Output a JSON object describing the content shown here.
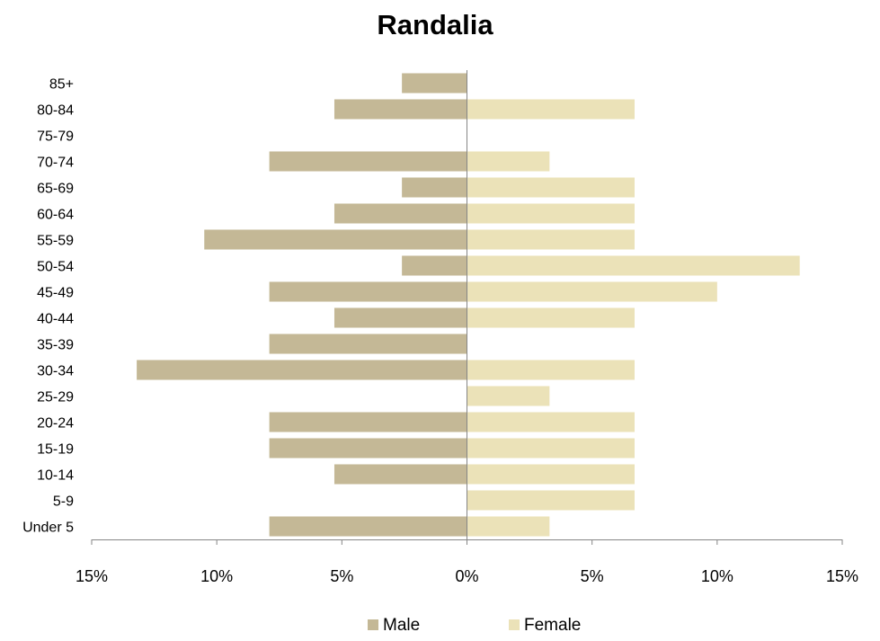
{
  "chart_data": {
    "type": "bar",
    "orientation": "horizontal",
    "title": "Randalia",
    "categories": [
      "Under 5",
      "5-9",
      "10-14",
      "15-19",
      "20-24",
      "25-29",
      "30-34",
      "35-39",
      "40-44",
      "45-49",
      "50-54",
      "55-59",
      "60-64",
      "65-69",
      "70-74",
      "75-79",
      "80-84",
      "85+"
    ],
    "series": [
      {
        "name": "Male",
        "color": "#c4b896",
        "values": [
          7.9,
          0,
          5.3,
          7.9,
          7.9,
          0,
          13.2,
          7.9,
          5.3,
          7.9,
          2.6,
          10.5,
          5.3,
          2.6,
          7.9,
          0,
          5.3,
          2.6
        ]
      },
      {
        "name": "Female",
        "color": "#ebe2b8",
        "values": [
          3.3,
          6.7,
          6.7,
          6.7,
          6.7,
          3.3,
          6.7,
          0,
          6.7,
          10.0,
          13.3,
          6.7,
          6.7,
          6.7,
          3.3,
          0,
          6.7,
          0
        ]
      }
    ],
    "xlim": [
      -15,
      15
    ],
    "x_ticks": [
      -15,
      -10,
      -5,
      0,
      5,
      10,
      15
    ],
    "x_tick_labels": [
      "15%",
      "10%",
      "5%",
      "0%",
      "5%",
      "10%",
      "15%"
    ],
    "legend_position": "bottom",
    "grid": false
  }
}
